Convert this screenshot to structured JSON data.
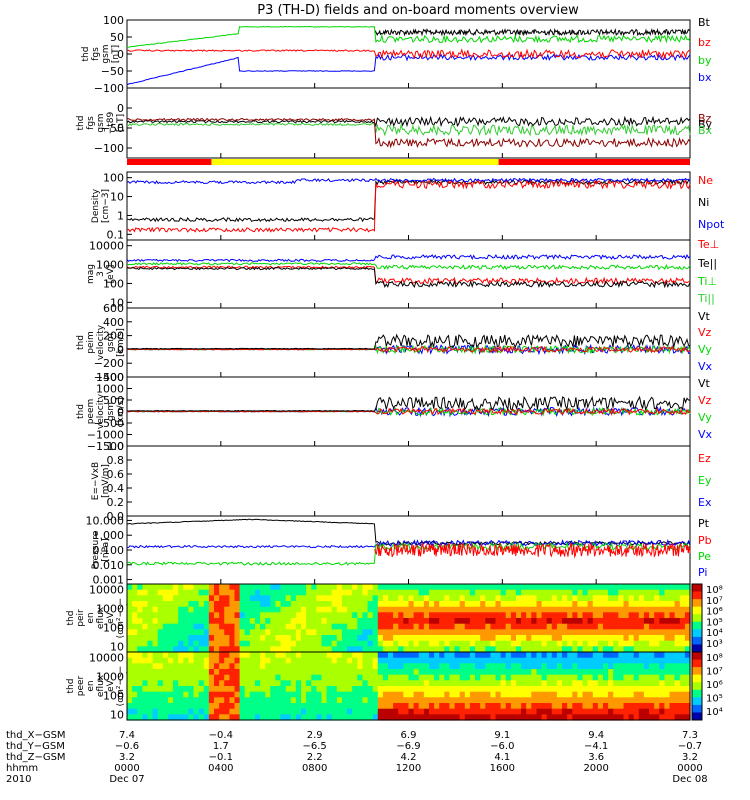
{
  "title": "P3 (TH-D) fields and on-board moments overview",
  "colors": {
    "black": "#000000",
    "red": "#ff0000",
    "green": "#00d800",
    "blue": "#0000ff",
    "darkred": "#8b0000",
    "lightgreen": "#33cc33",
    "yellow": "#ffff00"
  },
  "chart_data": [
    {
      "type": "line",
      "ylabel": [
        "thd",
        "fgs",
        "gsm",
        "[nT]"
      ],
      "ylim": [
        -100,
        100
      ],
      "ticks": [
        "100",
        "50",
        "0",
        "−50",
        "−100"
      ],
      "legend": [
        "Bt",
        "bz",
        "by",
        "bx"
      ],
      "legend_colors": [
        "black",
        "red",
        "green",
        "blue"
      ]
    },
    {
      "type": "line",
      "ylabel": [
        "thd",
        "fgs",
        "gsm",
        "−t89",
        "[nT]"
      ],
      "ylim": [
        -125,
        50
      ],
      "ticks": [
        "0",
        "−50",
        "−100"
      ],
      "legend": [
        "Bz",
        "By",
        "Bx"
      ],
      "legend_colors": [
        "darkred",
        "black",
        "lightgreen"
      ],
      "mode_bar": {
        "segments": [
          {
            "from": 0.0,
            "to": 0.15,
            "color": "red"
          },
          {
            "from": 0.15,
            "to": 0.66,
            "color": "yellow"
          },
          {
            "from": 0.66,
            "to": 1.0,
            "color": "red"
          }
        ]
      }
    },
    {
      "type": "line",
      "ylabel": [
        "Density",
        "[cm−3]"
      ],
      "yscale": "log",
      "ticks": [
        "100",
        "10",
        "1",
        "0.1"
      ],
      "legend": [
        "Ne",
        "Ni",
        "Npot"
      ],
      "legend_colors": [
        "red",
        "black",
        "blue"
      ]
    },
    {
      "type": "line",
      "ylabel": [
        "mag",
        "3",
        "[eV]"
      ],
      "yscale": "log",
      "ticks": [
        "10000",
        "1000",
        "100",
        "10"
      ],
      "legend": [
        "Te⊥",
        "Te||",
        "Ti⊥",
        "Ti||"
      ],
      "legend_colors": [
        "red",
        "black",
        "green",
        "lightgreen"
      ]
    },
    {
      "type": "line",
      "ylabel": [
        "thd",
        "peim",
        "velocity",
        "gsm",
        "[km/s]"
      ],
      "ylim": [
        -400,
        600
      ],
      "ticks": [
        "600",
        "400",
        "200",
        "0",
        "−200",
        "−400"
      ],
      "legend": [
        "Vt",
        "Vz",
        "Vy",
        "Vx"
      ],
      "legend_colors": [
        "black",
        "red",
        "green",
        "blue"
      ]
    },
    {
      "type": "line",
      "ylabel": [
        "thd",
        "peem",
        "velocity",
        "gsm",
        "[km/s]"
      ],
      "ylim": [
        -1500,
        1500
      ],
      "ticks": [
        "1500",
        "1000",
        "500",
        "0",
        "−500",
        "−1000",
        "−1500"
      ],
      "legend": [
        "Vt",
        "Vz",
        "Vy",
        "Vx"
      ],
      "legend_colors": [
        "black",
        "red",
        "green",
        "blue"
      ]
    },
    {
      "type": "line",
      "ylabel": [
        "E=−VxB",
        "[mV/m]"
      ],
      "ylim": [
        0,
        1
      ],
      "ticks": [
        "1.0",
        "0.8",
        "0.6",
        "0.4",
        "0.2",
        "0.0"
      ],
      "legend": [
        "Ez",
        "Ey",
        "Ex"
      ],
      "legend_colors": [
        "red",
        "green",
        "blue"
      ]
    },
    {
      "type": "line",
      "ylabel": [
        "Pressure",
        "[nPa]"
      ],
      "yscale": "log",
      "ticks": [
        "10.000",
        "1.000",
        "0.100",
        "0.010",
        "0.001"
      ],
      "legend": [
        "Pt",
        "Pb",
        "Pe",
        "Pi"
      ],
      "legend_colors": [
        "black",
        "red",
        "green",
        "blue"
      ]
    },
    {
      "type": "heatmap",
      "ylabel": [
        "thd",
        "peir",
        "en",
        "eflux",
        "eV",
        "(cm²−s−",
        "sr−eV)"
      ],
      "ticks": [
        "10000",
        "1000",
        "100",
        "10"
      ],
      "colorbar": [
        "10⁸",
        "10⁷",
        "10⁶",
        "10⁵",
        "10⁴",
        "10³"
      ]
    },
    {
      "type": "heatmap",
      "ylabel": [
        "thd",
        "peer",
        "en",
        "eflux",
        "eV",
        "(cm²−s−",
        "sr−eV)"
      ],
      "ticks": [
        "10000",
        "1000",
        "100",
        "10"
      ],
      "colorbar": [
        "10⁸",
        "10⁷",
        "10⁶",
        "10⁵",
        "10⁴"
      ]
    }
  ],
  "xaxis": {
    "labels": [
      "thd_X−GSM",
      "thd_Y−GSM",
      "thd_Z−GSM",
      "hhmm",
      "2010"
    ],
    "columns": [
      [
        "7.4",
        "−0.6",
        "3.2",
        "0000",
        "Dec 07"
      ],
      [
        "−0.4",
        "1.7",
        "−0.1",
        "0400",
        ""
      ],
      [
        "2.9",
        "−6.5",
        "2.2",
        "0800",
        ""
      ],
      [
        "6.9",
        "−6.9",
        "4.2",
        "1200",
        ""
      ],
      [
        "9.1",
        "−6.0",
        "4.1",
        "1600",
        ""
      ],
      [
        "9.4",
        "−4.1",
        "3.6",
        "2000",
        ""
      ],
      [
        "7.3",
        "−0.7",
        "3.2",
        "0000",
        "Dec 08"
      ]
    ]
  }
}
